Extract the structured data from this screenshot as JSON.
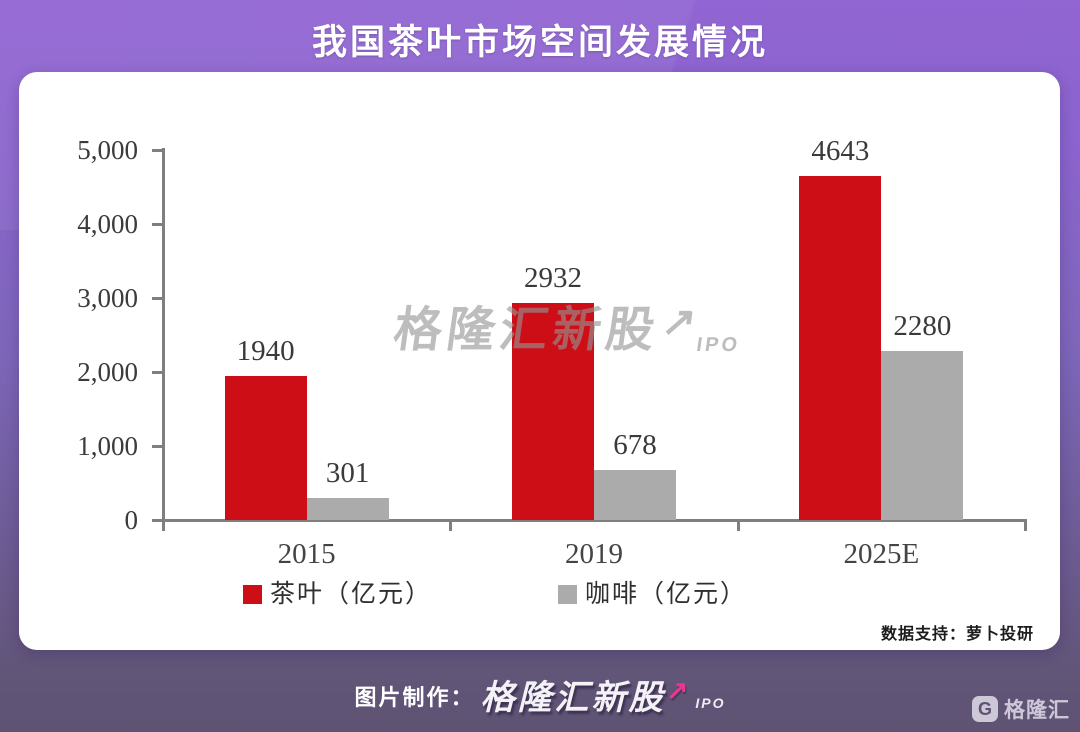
{
  "header": {
    "title": "我国茶叶市场空间发展情况"
  },
  "chart_data": {
    "type": "bar",
    "categories": [
      "2015",
      "2019",
      "2025E"
    ],
    "series": [
      {
        "name": "茶叶（亿元）",
        "color": "#CE0E17",
        "values": [
          1940,
          2932,
          4643
        ]
      },
      {
        "name": "咖啡（亿元）",
        "color": "#ABABAB",
        "values": [
          301,
          678,
          2280
        ]
      }
    ],
    "title": "我国茶叶市场空间发展情况",
    "xlabel": "",
    "ylabel": "",
    "ylim": [
      0,
      5000
    ],
    "yticks": [
      "5,000",
      "4,000",
      "3,000",
      "2,000",
      "1,000",
      "0"
    ],
    "grid": false,
    "legend_position": "bottom"
  },
  "watermark": {
    "brand": "格隆汇新股",
    "arrow": "↗",
    "suffix": "IPO"
  },
  "card": {
    "data_support": "数据支持：萝卜投研"
  },
  "footer": {
    "prefix": "图片制作：",
    "brand": "格隆汇新股",
    "arrow": "↗",
    "suffix": "IPO"
  },
  "logo": {
    "glyph": "G",
    "text": "格隆汇"
  }
}
